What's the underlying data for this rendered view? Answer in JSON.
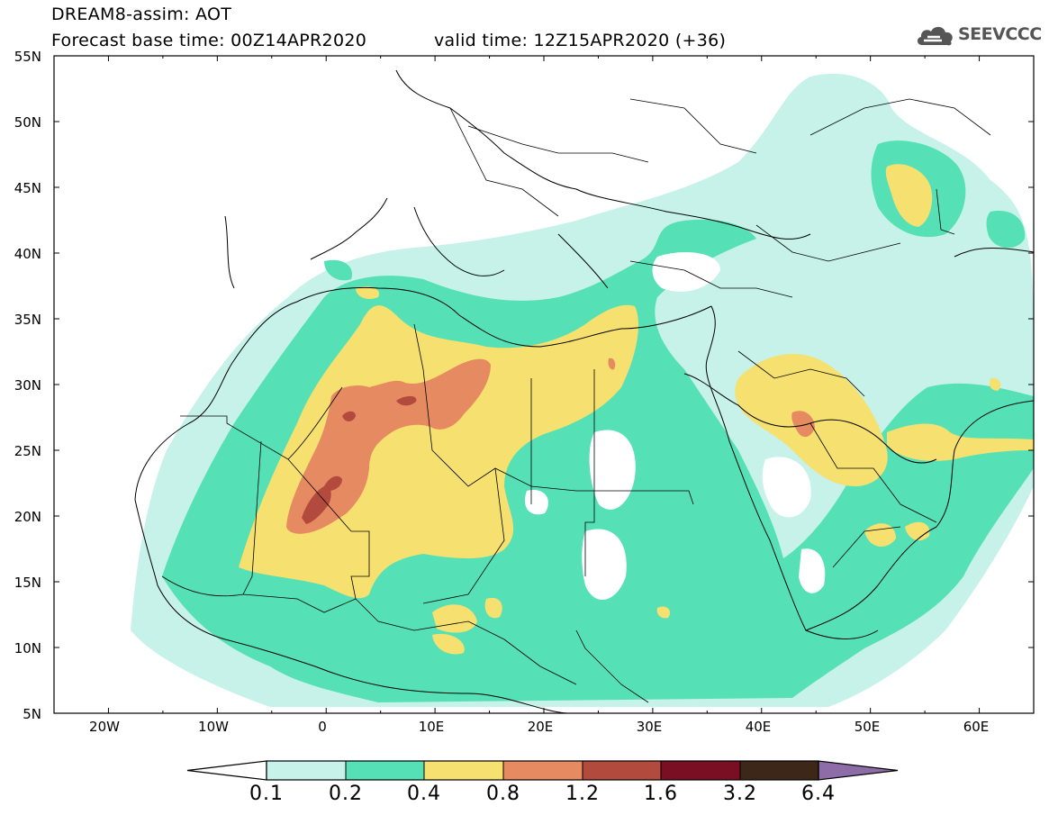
{
  "title": {
    "line1": "DREAM8-assim: AOT",
    "line2": "Forecast base time: 00Z14APR2020",
    "valid": "valid time: 12Z15APR2020 (+36)"
  },
  "logo": {
    "text": "SEEVCCC",
    "icon": "cloud-icon"
  },
  "map": {
    "lon_range": [
      -25,
      65
    ],
    "lat_range": [
      5,
      55
    ],
    "y_ticks": [
      "55N",
      "50N",
      "45N",
      "40N",
      "35N",
      "30N",
      "25N",
      "20N",
      "15N",
      "10N",
      "5N"
    ],
    "x_ticks": [
      "20W",
      "10W",
      "0",
      "10E",
      "20E",
      "30E",
      "40E",
      "50E",
      "60E"
    ]
  },
  "legend": {
    "levels": [
      "0.1",
      "0.2",
      "0.4",
      "0.8",
      "1.2",
      "1.6",
      "3.2",
      "6.4"
    ],
    "colors": [
      "#ffffff",
      "#c6f2ea",
      "#56e0b5",
      "#f6e06f",
      "#e68a62",
      "#b34a3e",
      "#7a0f24",
      "#3c2719",
      "#8d6ca7"
    ]
  }
}
